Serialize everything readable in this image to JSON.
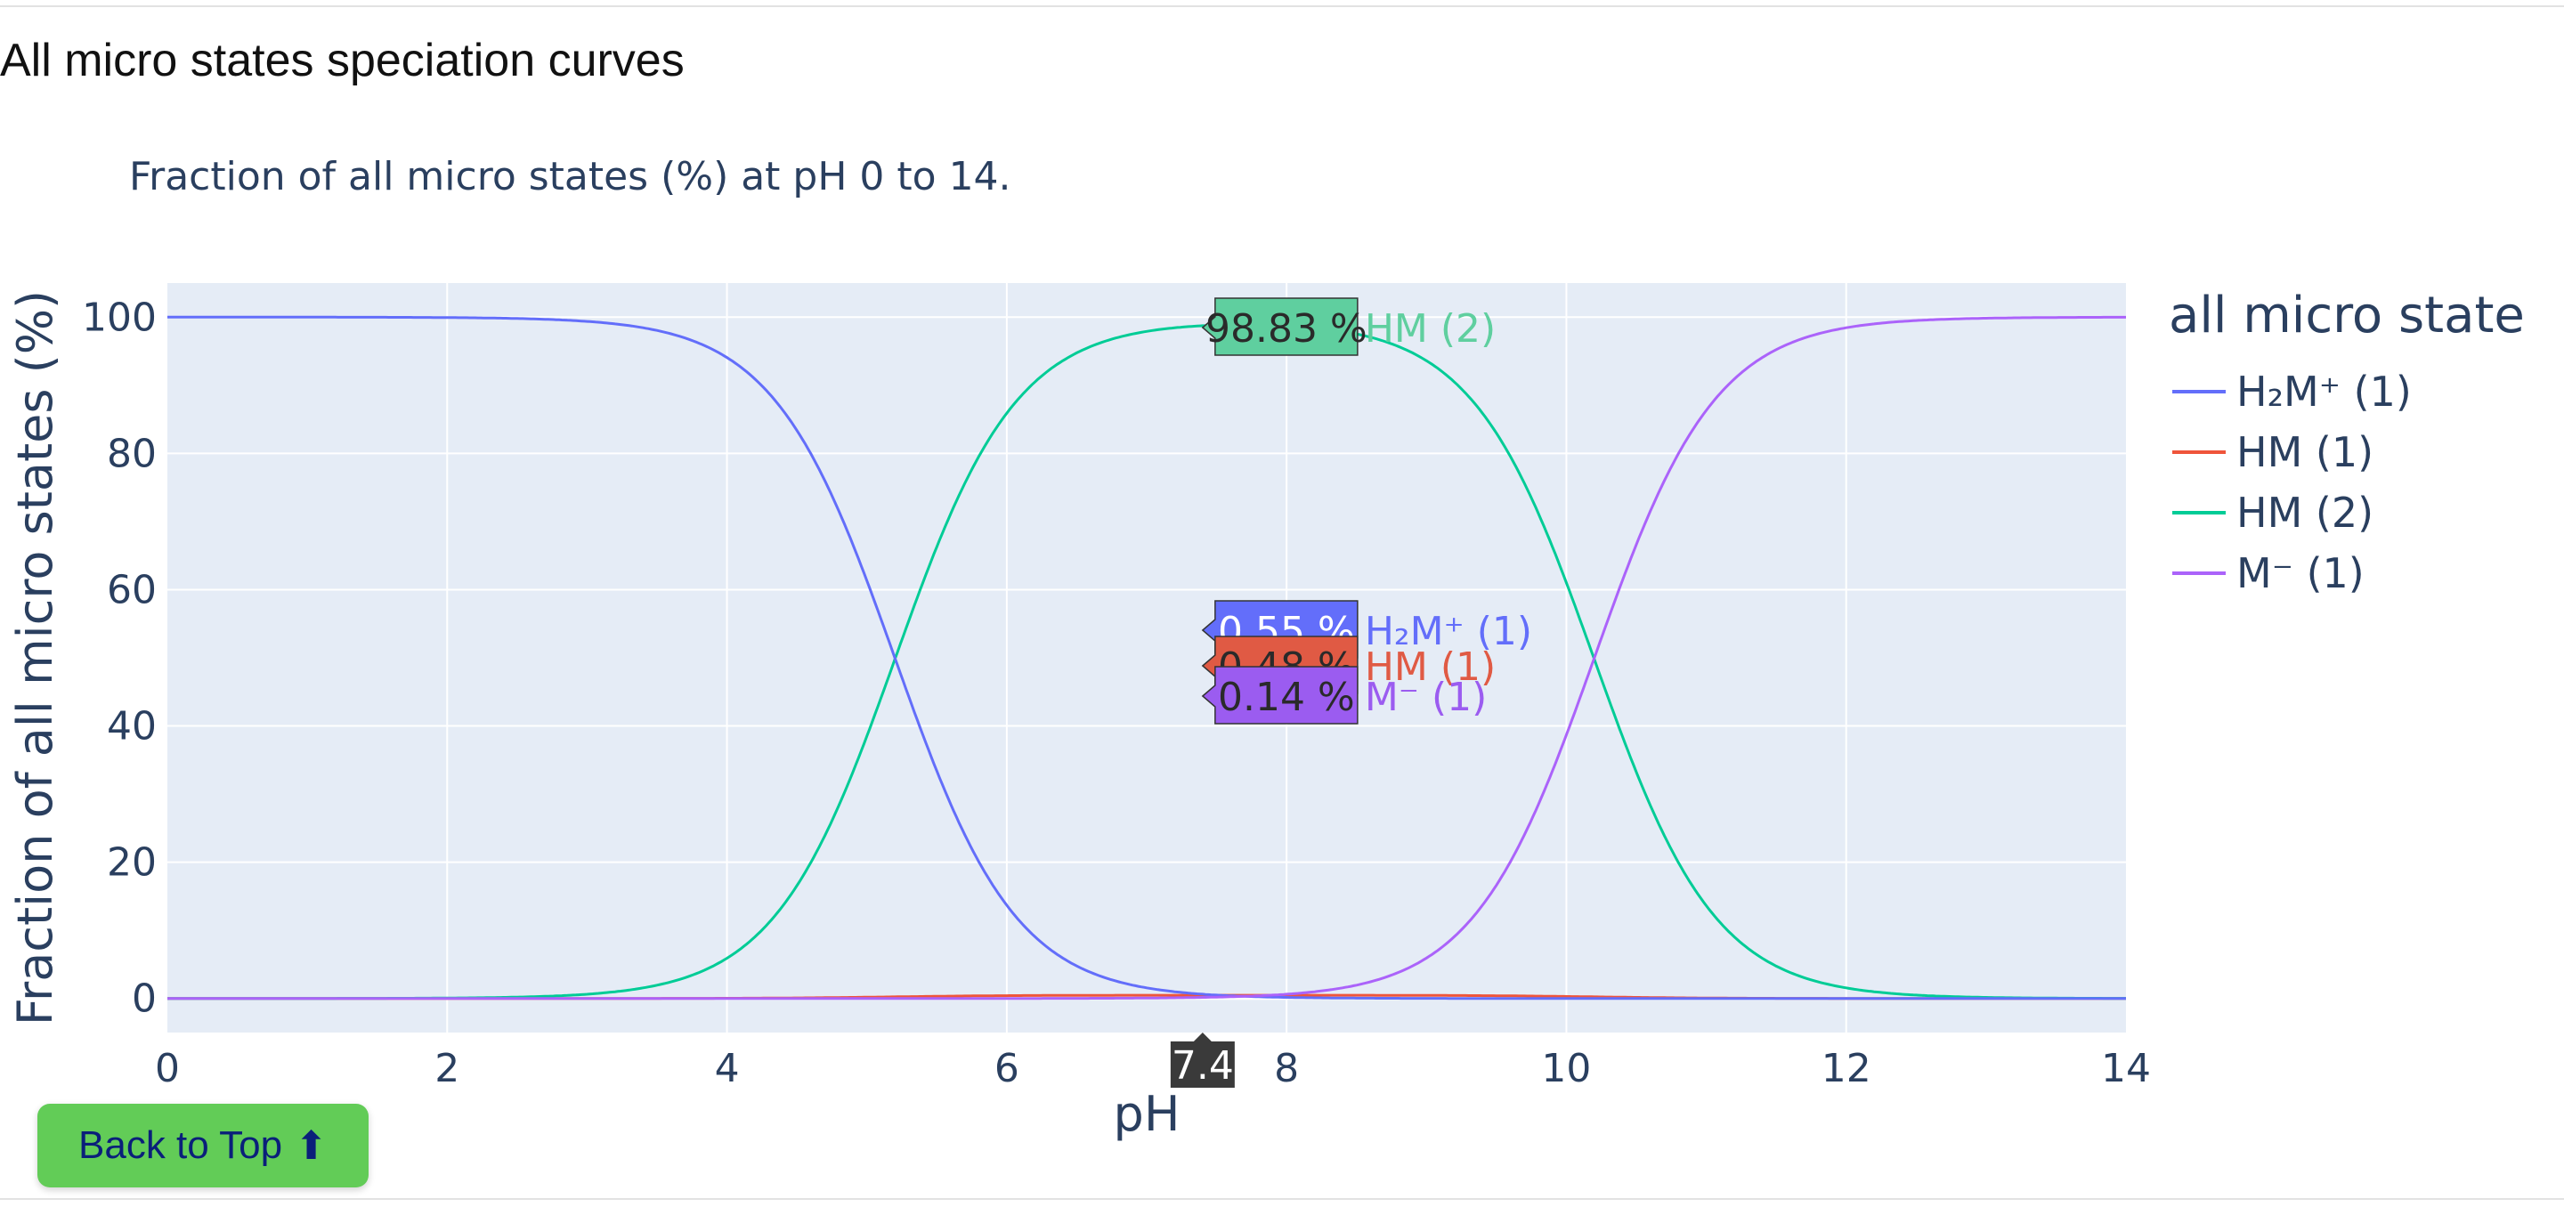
{
  "section": {
    "title": "All micro states speciation curves"
  },
  "back_button": {
    "label": "Back to Top",
    "arrow": "⬆"
  },
  "chart_data": {
    "type": "line",
    "title": "Fraction of all micro states (%) at pH 0 to 14.",
    "xlabel": "pH",
    "ylabel": "Fraction of all micro states (%)",
    "xlim": [
      0,
      14
    ],
    "ylim": [
      -5,
      105
    ],
    "xticks": [
      0,
      2,
      4,
      6,
      8,
      10,
      12,
      14
    ],
    "yticks": [
      0,
      20,
      40,
      60,
      80,
      100
    ],
    "grid": true,
    "plot_background": "#e5ecf6",
    "legend": {
      "title": "all micro state",
      "placement": "right"
    },
    "pka1": 5.2,
    "pka2": 10.2,
    "hm1_fraction_of_neutral": 0.0048,
    "series": [
      {
        "name": "H₂M⁺ (1)",
        "key": "H2M",
        "color": "#636efa"
      },
      {
        "name": "HM (1)",
        "key": "HM1",
        "color": "#ef553b"
      },
      {
        "name": "HM (2)",
        "key": "HM2",
        "color": "#00cc96"
      },
      {
        "name": "M⁻ (1)",
        "key": "M",
        "color": "#ab63fa"
      }
    ],
    "hover": {
      "x": 7.4,
      "x_label": "7.4",
      "labels": [
        {
          "value_text": "98.83 %",
          "name": "HM (2)",
          "key": "HM2",
          "color": "#5fcf9f",
          "value": 98.83
        },
        {
          "value_text": "0.55 %",
          "name": "H₂M⁺ (1)",
          "key": "H2M",
          "color": "#636efa",
          "value": 0.55
        },
        {
          "value_text": "0.48 %",
          "name": "HM (1)",
          "key": "HM1",
          "color": "#e05a44",
          "value": 0.48
        },
        {
          "value_text": "0.14 %",
          "name": "M⁻ (1)",
          "key": "M",
          "color": "#9b5cf0",
          "value": 0.14
        }
      ]
    }
  }
}
